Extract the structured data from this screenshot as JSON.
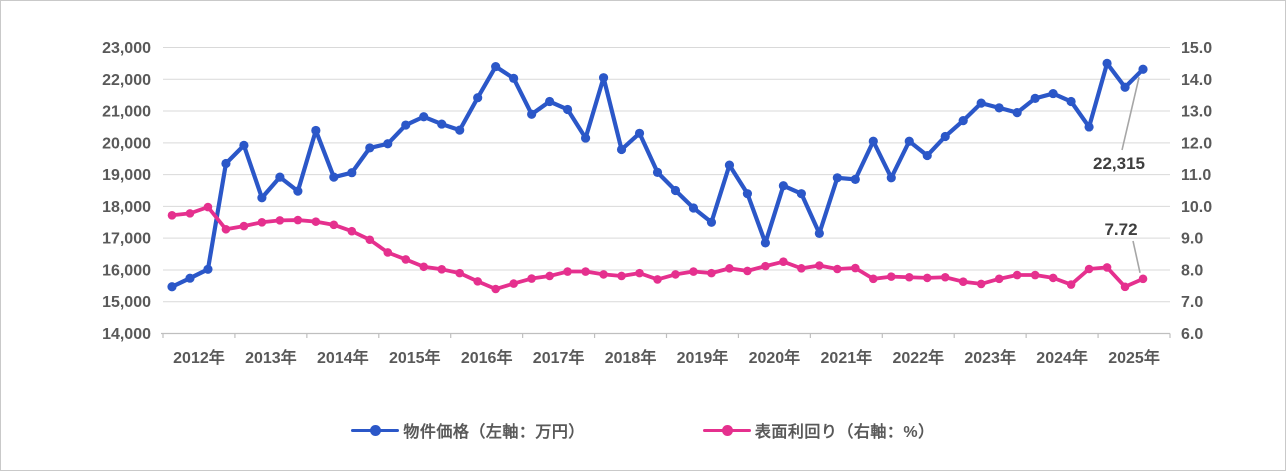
{
  "chart_data": {
    "type": "line",
    "title": "",
    "x_axis": {
      "tick_labels": [
        "2012年",
        "2013年",
        "2014年",
        "2015年",
        "2016年",
        "2017年",
        "2018年",
        "2019年",
        "2020年",
        "2021年",
        "2022年",
        "2023年",
        "2024年",
        "2025年"
      ],
      "frequency": "quarterly",
      "start": "2012-Q1",
      "end": "2025-Q3"
    },
    "left_axis": {
      "min": 14000,
      "max": 23000,
      "step": 1000,
      "tick_labels": [
        "23,000",
        "22,000",
        "21,000",
        "20,000",
        "19,000",
        "18,000",
        "17,000",
        "16,000",
        "15,000",
        "14,000"
      ]
    },
    "right_axis": {
      "min": 6.0,
      "max": 15.0,
      "step": 1.0,
      "tick_labels": [
        "15.0",
        "14.0",
        "13.0",
        "12.0",
        "11.0",
        "10.0",
        "9.0",
        "8.0",
        "7.0",
        "6.0"
      ]
    },
    "grid": true,
    "legend_position": "bottom",
    "series": [
      {
        "name": "物件価格（左軸：万円）",
        "axis": "left",
        "color": "#2b57c8",
        "values": [
          15470,
          15740,
          16020,
          19350,
          19920,
          18270,
          18920,
          18480,
          20390,
          18920,
          19060,
          19840,
          19970,
          20560,
          20820,
          20590,
          20400,
          21420,
          22400,
          22030,
          20900,
          21300,
          21050,
          20150,
          22050,
          19790,
          20300,
          19070,
          18500,
          17950,
          17500,
          19300,
          18400,
          16850,
          18650,
          18400,
          17150,
          18900,
          18850,
          20050,
          18900,
          20050,
          19600,
          20200,
          20700,
          21250,
          21100,
          20950,
          21400,
          21550,
          21300,
          20500,
          22500,
          21750,
          22315
        ]
      },
      {
        "name": "表面利回り（右軸：%）",
        "axis": "right",
        "color": "#e5308e",
        "values": [
          9.72,
          9.78,
          9.98,
          9.28,
          9.38,
          9.5,
          9.56,
          9.57,
          9.52,
          9.42,
          9.22,
          8.95,
          8.55,
          8.33,
          8.1,
          8.02,
          7.9,
          7.64,
          7.4,
          7.57,
          7.73,
          7.81,
          7.95,
          7.95,
          7.86,
          7.81,
          7.9,
          7.7,
          7.86,
          7.95,
          7.9,
          8.05,
          7.97,
          8.12,
          8.26,
          8.05,
          8.14,
          8.03,
          8.06,
          7.72,
          7.79,
          7.77,
          7.75,
          7.77,
          7.63,
          7.56,
          7.72,
          7.84,
          7.84,
          7.75,
          7.54,
          8.03,
          8.08,
          7.47,
          7.72
        ]
      }
    ],
    "annotations": [
      {
        "series": 0,
        "point": "last",
        "text": "22,315"
      },
      {
        "series": 1,
        "point": "last",
        "text": "7.72"
      }
    ],
    "colors": {
      "gridline": "#d9d9d9",
      "axis_line": "#bfbfbf",
      "tick_label": "#595959",
      "annotation_text": "#3f3f3f",
      "leader_line": "#a6a6a6"
    }
  }
}
